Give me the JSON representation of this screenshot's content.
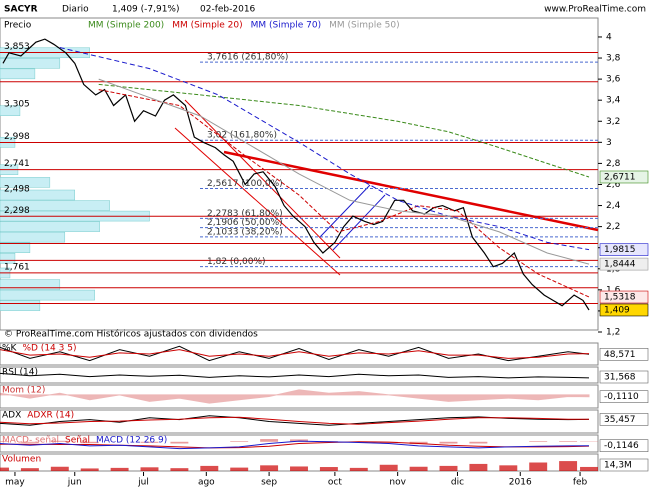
{
  "header": {
    "symbol": "SACYR",
    "period": "Diario",
    "last": "1,409 (-7,91%)",
    "date": "02-feb-2016",
    "site": "www.ProRealTime.com"
  },
  "chart_data": {
    "type": "line",
    "legend_title": "Precio",
    "footer": "© ProRealTime.com  Históricos ajustados con dividendos",
    "xlim": [
      0,
      200
    ],
    "xticks": [
      {
        "value": 5,
        "label": "may"
      },
      {
        "value": 25,
        "label": "jun"
      },
      {
        "value": 48,
        "label": "jul"
      },
      {
        "value": 69,
        "label": "ago"
      },
      {
        "value": 90,
        "label": "sep"
      },
      {
        "value": 112,
        "label": "oct"
      },
      {
        "value": 133,
        "label": "nov"
      },
      {
        "value": 153,
        "label": "dic"
      },
      {
        "value": 174,
        "label": "2016"
      },
      {
        "value": 194,
        "label": "feb"
      }
    ],
    "ylim": [
      1.124,
      4.18
    ],
    "yticks": [
      4,
      {
        "value": 3.8,
        "label": "3,8"
      },
      {
        "value": 3.6,
        "label": "3,6"
      },
      {
        "value": 3.4,
        "label": "3,4"
      },
      {
        "value": 3.2,
        "label": "3,2"
      },
      3,
      {
        "value": 2.8,
        "label": "2,8"
      },
      {
        "value": 2.6,
        "label": "2,6"
      },
      {
        "value": 2.4,
        "label": "2,4"
      },
      {
        "value": 2.2,
        "label": "2,2"
      },
      2,
      {
        "value": 1.8,
        "label": "1,8"
      },
      {
        "value": 1.6,
        "label": "1,6"
      },
      {
        "value": 1.4,
        "label": "1,4"
      },
      {
        "value": 1.2,
        "label": "1,2"
      }
    ],
    "series": [
      {
        "name": "Precio",
        "color": "#000000",
        "width": 1.2,
        "dash": "",
        "last_value": {
          "value": 1.409,
          "label": "1,409"
        },
        "box": "#ffd700",
        "x": [
          1,
          3,
          7,
          12,
          15,
          18,
          22,
          25,
          28,
          32,
          35,
          38,
          42,
          45,
          48,
          52,
          55,
          58,
          62,
          65,
          68,
          72,
          75,
          78,
          82,
          85,
          88,
          92,
          95,
          98,
          102,
          105,
          108,
          112,
          115,
          118,
          122,
          125,
          128,
          132,
          135,
          138,
          142,
          145,
          148,
          152,
          155,
          158,
          162,
          165,
          168,
          172,
          175,
          178,
          182,
          185,
          188,
          192,
          195,
          197
        ],
        "values": [
          3.75,
          3.85,
          3.82,
          3.95,
          3.98,
          3.93,
          3.85,
          3.75,
          3.55,
          3.45,
          3.5,
          3.35,
          3.45,
          3.2,
          3.3,
          3.25,
          3.4,
          3.45,
          3.35,
          3.05,
          3.0,
          2.95,
          2.88,
          2.82,
          2.6,
          2.7,
          2.72,
          2.58,
          2.4,
          2.3,
          2.2,
          2.05,
          1.95,
          2.05,
          2.2,
          2.3,
          2.25,
          2.22,
          2.25,
          2.45,
          2.45,
          2.35,
          2.32,
          2.38,
          2.4,
          2.35,
          2.38,
          2.1,
          1.95,
          1.82,
          1.85,
          1.95,
          1.75,
          1.65,
          1.55,
          1.5,
          1.45,
          1.55,
          1.5,
          1.409
        ]
      },
      {
        "name": "MM (Simple 200)",
        "color": "#3a8a1a",
        "width": 1,
        "dash": "4 2",
        "last_value": {
          "value": 2.6711,
          "label": "2,6711"
        },
        "box": "#e6f4e6",
        "x": [
          33,
          67,
          100,
          133,
          150,
          167,
          183,
          197
        ],
        "values": [
          3.55,
          3.45,
          3.35,
          3.2,
          3.1,
          2.95,
          2.8,
          2.6711
        ]
      },
      {
        "name": "MM (Simple 20)",
        "color": "#cc0000",
        "width": 1,
        "dash": "4 2",
        "last_value": {
          "value": 1.5318,
          "label": "1,5318"
        },
        "box": "#fde8e8",
        "x": [
          33,
          60,
          83,
          100,
          113,
          127,
          140,
          153,
          167,
          180,
          197
        ],
        "values": [
          3.5,
          3.35,
          2.85,
          2.5,
          2.15,
          2.25,
          2.4,
          2.35,
          2.0,
          1.75,
          1.5318
        ]
      },
      {
        "name": "MM (Simple 70)",
        "color": "#1a1acc",
        "width": 1,
        "dash": "5 3",
        "last_value": {
          "value": 1.9815,
          "label": "1,9815"
        },
        "box": "#e6e6fd",
        "x": [
          20,
          50,
          73,
          100,
          117,
          133,
          150,
          167,
          183,
          197
        ],
        "values": [
          3.9,
          3.7,
          3.45,
          3.0,
          2.7,
          2.45,
          2.3,
          2.2,
          2.05,
          1.9815
        ]
      },
      {
        "name": "MM (Simple 50)",
        "color": "#999999",
        "width": 1,
        "dash": "",
        "last_value": {
          "value": 1.8444,
          "label": "1,8444"
        },
        "box": "#eeeeee",
        "x": [
          33,
          67,
          100,
          117,
          133,
          150,
          167,
          183,
          197
        ],
        "values": [
          3.6,
          3.25,
          2.7,
          2.45,
          2.35,
          2.3,
          2.15,
          1.95,
          1.8444
        ]
      }
    ],
    "levels": [
      3.853,
      3.575,
      2.998,
      2.741,
      2.298,
      2.04,
      1.88,
      1.761,
      1.62,
      1.47
    ],
    "fibonacci": [
      {
        "value": 3.7616,
        "label": "3,7616 (261,80%)"
      },
      {
        "value": 3.02,
        "label": "3,02 (161,80%)"
      },
      {
        "value": 2.5617,
        "label": "2,5617 (100,0%)"
      },
      {
        "value": 2.2783,
        "label": "2,2783 (61,80%)"
      },
      {
        "value": 2.1906,
        "label": "2,1906 (50,00%)"
      },
      {
        "value": 2.1033,
        "label": "2,1033 (38,20%)"
      },
      {
        "value": 1.82,
        "label": "1,82 (0,00%)"
      }
    ],
    "volume_profile": {
      "xlim": [
        0,
        600
      ],
      "labels": [
        {
          "value": 3.853,
          "label": "3,853"
        },
        {
          "value": 3.305,
          "label": "3,305"
        },
        {
          "value": 2.998,
          "label": "2,998"
        },
        {
          "value": 2.741,
          "label": "2,741"
        },
        {
          "value": 2.498,
          "label": "2,498"
        },
        {
          "value": 2.298,
          "label": "2,298"
        },
        {
          "value": 1.761,
          "label": "1,761"
        }
      ],
      "prices": [
        3.85,
        3.75,
        3.65,
        3.3,
        3.0,
        2.74,
        2.62,
        2.5,
        2.4,
        2.3,
        2.2,
        2.1,
        2.0,
        1.9,
        1.76,
        1.65,
        1.55,
        1.45
      ],
      "values": [
        90,
        60,
        35,
        20,
        15,
        18,
        50,
        75,
        110,
        150,
        100,
        65,
        30,
        15,
        10,
        60,
        95,
        40
      ]
    }
  },
  "indicators": [
    {
      "type": "line",
      "ylim": [
        0,
        100
      ],
      "last_value": {
        "value": 48.571,
        "label": "48,571"
      },
      "x": [
        0,
        10,
        20,
        30,
        40,
        50,
        60,
        70,
        80,
        90,
        100,
        110,
        120,
        130,
        140,
        150,
        160,
        170,
        180,
        190,
        197
      ],
      "series": [
        {
          "name": "%K",
          "color": "#000000",
          "kind": "line",
          "values": [
            80,
            30,
            60,
            20,
            70,
            40,
            85,
            20,
            60,
            30,
            75,
            25,
            70,
            40,
            80,
            30,
            50,
            20,
            40,
            60,
            48.571
          ]
        },
        {
          "name": "%D (14 3 5)",
          "color": "#cc0000",
          "kind": "line",
          "values": [
            70,
            45,
            50,
            35,
            55,
            50,
            70,
            40,
            50,
            40,
            60,
            40,
            55,
            50,
            65,
            45,
            45,
            30,
            35,
            50,
            52
          ]
        }
      ]
    },
    {
      "type": "line",
      "ylim": [
        0,
        100
      ],
      "last_value": {
        "value": 31.568,
        "label": "31,568"
      },
      "x": [
        0,
        10,
        20,
        30,
        40,
        50,
        60,
        70,
        80,
        90,
        100,
        110,
        120,
        130,
        140,
        150,
        160,
        170,
        180,
        190,
        197
      ],
      "series": [
        {
          "name": "RSI (14)",
          "color": "#000000",
          "kind": "line",
          "values": [
            60,
            45,
            55,
            40,
            50,
            42,
            48,
            35,
            45,
            38,
            50,
            40,
            55,
            45,
            50,
            35,
            40,
            32,
            38,
            35,
            31.568
          ]
        }
      ]
    },
    {
      "type": "area",
      "ylim": [
        -0.8,
        0.6
      ],
      "last_value": {
        "value": -0.111,
        "label": "-0,1110"
      },
      "x": [
        0,
        10,
        20,
        30,
        40,
        50,
        60,
        70,
        80,
        90,
        100,
        110,
        120,
        130,
        140,
        150,
        160,
        170,
        180,
        190,
        197
      ],
      "series": [
        {
          "name": "Mom (12)",
          "color": "#cc3333",
          "kind": "area",
          "values": [
            0.1,
            -0.2,
            0.1,
            -0.3,
            0,
            -0.4,
            -0.2,
            -0.5,
            -0.3,
            -0.1,
            0.3,
            0.1,
            0.2,
            0,
            -0.2,
            -0.4,
            -0.3,
            -0.2,
            -0.3,
            -0.1,
            -0.111
          ]
        }
      ]
    },
    {
      "type": "line",
      "ylim": [
        0,
        60
      ],
      "last_value": {
        "value": 35.457,
        "label": "35,457"
      },
      "x": [
        0,
        10,
        20,
        30,
        40,
        50,
        60,
        70,
        80,
        90,
        100,
        110,
        120,
        130,
        140,
        150,
        160,
        170,
        180,
        190,
        197
      ],
      "series": [
        {
          "name": "ADX",
          "color": "#000000",
          "kind": "line",
          "values": [
            25,
            20,
            30,
            35,
            28,
            40,
            35,
            45,
            40,
            30,
            25,
            20,
            25,
            30,
            35,
            40,
            42,
            38,
            36,
            35,
            35.457
          ]
        },
        {
          "name": "ADXR (14)",
          "color": "#cc0000",
          "kind": "line",
          "values": [
            28,
            24,
            26,
            30,
            31,
            34,
            36,
            40,
            41,
            36,
            30,
            25,
            23,
            27,
            31,
            36,
            40,
            40,
            38,
            36,
            36
          ]
        }
      ]
    },
    {
      "type": "macd",
      "ylim": [
        -0.3,
        0.2
      ],
      "last_value": {
        "value": -0.1146,
        "label": "-0,1146"
      },
      "x": [
        0,
        10,
        20,
        30,
        40,
        50,
        60,
        70,
        80,
        90,
        100,
        110,
        120,
        130,
        140,
        150,
        160,
        170,
        180,
        190,
        197
      ],
      "series": [
        {
          "name": "MACD- señal",
          "color": "#e07070",
          "kind": "bar",
          "values": [
            0.02,
            -0.03,
            0.03,
            -0.04,
            0,
            -0.03,
            -0.05,
            0,
            0.02,
            0.08,
            0.07,
            0.02,
            -0.02,
            -0.04,
            -0.07,
            -0.05,
            -0.05,
            0,
            0.02,
            0.02,
            0.01
          ]
        },
        {
          "name": "Señal",
          "color": "#cc0000",
          "kind": "line",
          "values": [
            -0.07,
            -0.07,
            -0.08,
            -0.08,
            -0.1,
            -0.12,
            -0.15,
            -0.18,
            -0.17,
            -0.13,
            -0.05,
            -0.02,
            0,
            -0.01,
            -0.05,
            -0.1,
            -0.13,
            -0.15,
            -0.15,
            -0.14,
            -0.125
          ]
        },
        {
          "name": "MACD (12 26 9)",
          "color": "#1a1acc",
          "kind": "line",
          "values": [
            -0.05,
            -0.1,
            -0.05,
            -0.12,
            -0.1,
            -0.15,
            -0.2,
            -0.18,
            -0.15,
            -0.05,
            0.02,
            0,
            -0.02,
            -0.05,
            -0.12,
            -0.15,
            -0.18,
            -0.15,
            -0.13,
            -0.12,
            -0.1146
          ]
        }
      ]
    },
    {
      "type": "bar",
      "ylim": [
        0,
        60000000
      ],
      "last_value": {
        "value": 14300000,
        "label": "14,3M"
      },
      "x": [
        0,
        10,
        20,
        30,
        40,
        50,
        60,
        70,
        80,
        90,
        100,
        110,
        120,
        130,
        140,
        150,
        160,
        170,
        180,
        190,
        197
      ],
      "series": [
        {
          "name": "Volumen",
          "color": "#cc0000",
          "kind": "bar",
          "values": [
            12000000,
            10000000,
            15000000,
            9000000,
            11000000,
            13000000,
            10000000,
            18000000,
            12000000,
            20000000,
            16000000,
            14000000,
            11000000,
            22000000,
            15000000,
            18000000,
            25000000,
            20000000,
            30000000,
            35000000,
            14300000
          ]
        }
      ]
    }
  ]
}
